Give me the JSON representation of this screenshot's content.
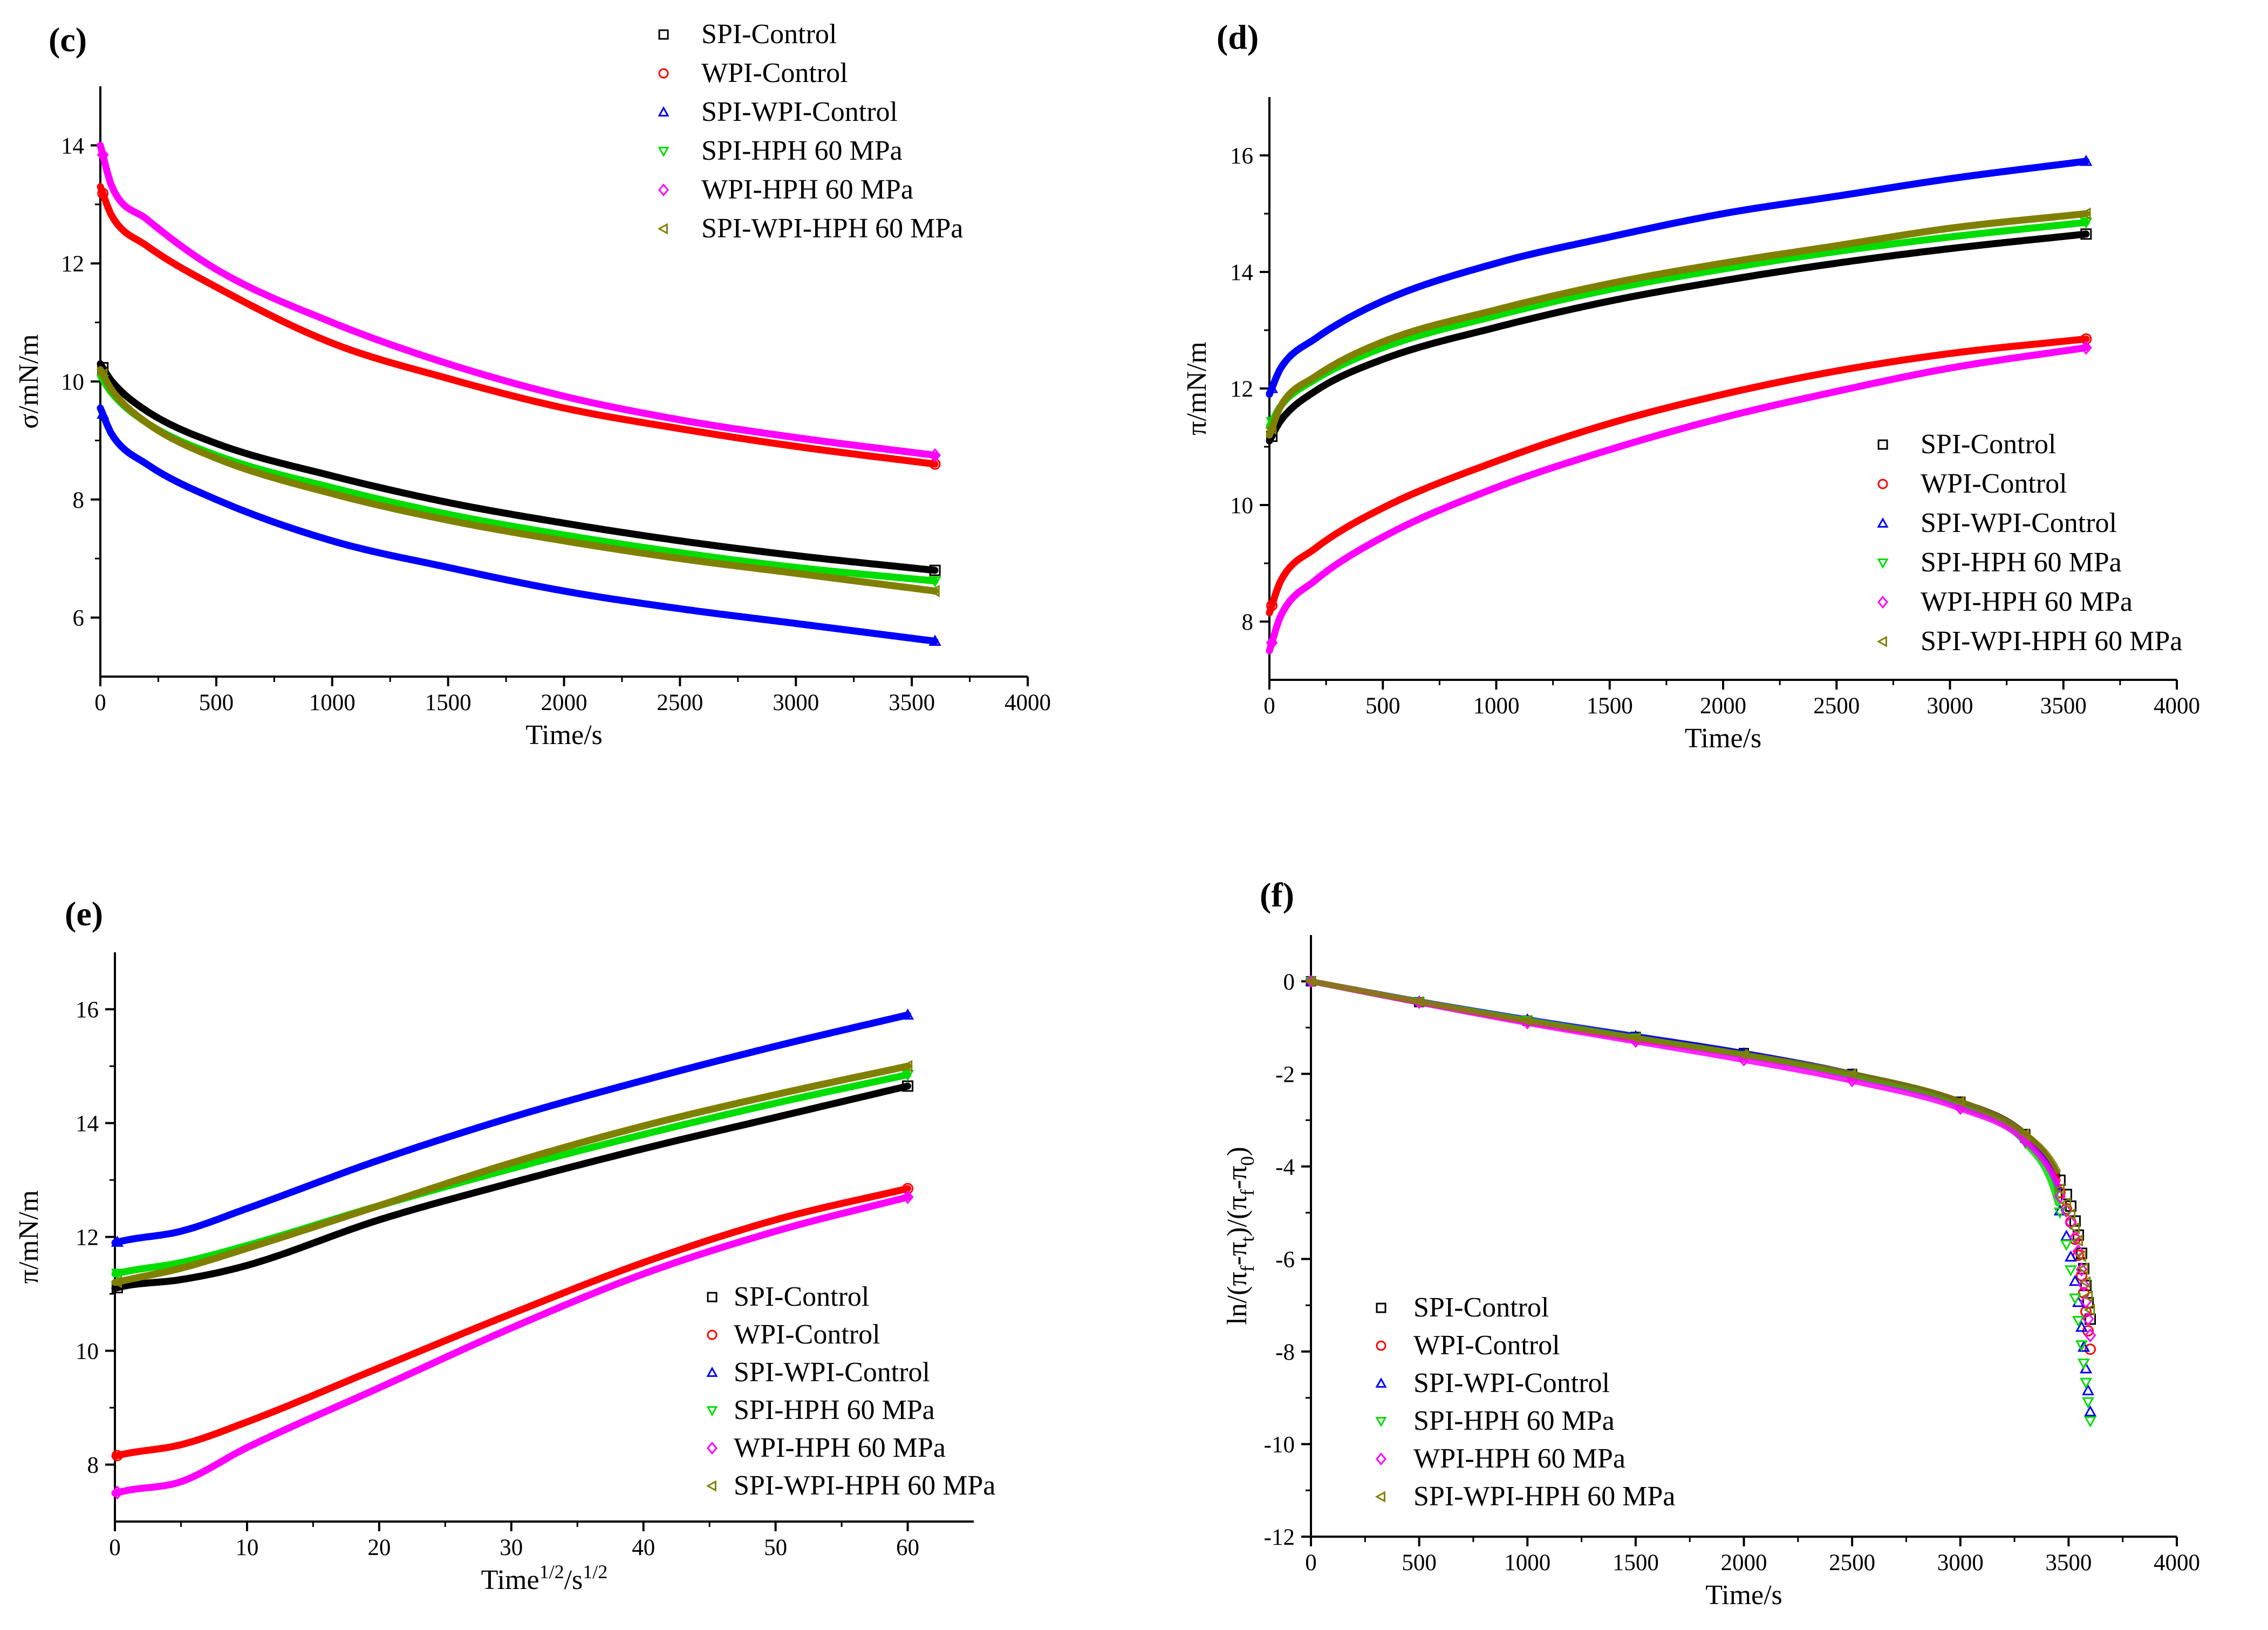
{
  "figure": {
    "legend": [
      {
        "label": "SPI-Control",
        "color": "#000000",
        "marker": "square"
      },
      {
        "label": "WPI-Control",
        "color": "#ff0000",
        "marker": "circle"
      },
      {
        "label": "SPI-WPI-Control",
        "color": "#0000ff",
        "marker": "triangle-up"
      },
      {
        "label": "SPI-HPH 60 MPa",
        "color": "#00dd00",
        "marker": "triangle-down"
      },
      {
        "label": "WPI-HPH 60 MPa",
        "color": "#ff00ff",
        "marker": "diamond"
      },
      {
        "label": "SPI-WPI-HPH 60 MPa",
        "color": "#808000",
        "marker": "triangle-left"
      }
    ]
  },
  "chart_data": [
    {
      "panel": "(c)",
      "type": "line",
      "xlabel": "Time/s",
      "ylabel": "σ/mN/m",
      "xlim": [
        0,
        4000
      ],
      "ylim": [
        5,
        15
      ],
      "xticks": [
        0,
        500,
        1000,
        1500,
        2000,
        2500,
        3000,
        3500,
        4000
      ],
      "yticks": [
        6,
        8,
        10,
        12,
        14
      ],
      "legend_position": "top-right",
      "series": [
        {
          "name": "SPI-Control",
          "x": [
            0,
            50,
            200,
            500,
            1000,
            1500,
            2000,
            2500,
            3000,
            3600
          ],
          "y": [
            10.3,
            10.0,
            9.5,
            8.95,
            8.4,
            7.95,
            7.6,
            7.3,
            7.05,
            6.8
          ]
        },
        {
          "name": "WPI-Control",
          "x": [
            0,
            50,
            200,
            500,
            1000,
            1500,
            2000,
            2500,
            3000,
            3600
          ],
          "y": [
            13.3,
            12.8,
            12.3,
            11.6,
            10.65,
            10.05,
            9.55,
            9.2,
            8.9,
            8.6
          ]
        },
        {
          "name": "SPI-WPI-Control",
          "x": [
            0,
            50,
            200,
            500,
            1000,
            1500,
            2000,
            2500,
            3000,
            3600
          ],
          "y": [
            9.55,
            9.1,
            8.6,
            8.0,
            7.3,
            6.85,
            6.45,
            6.15,
            5.9,
            5.6
          ]
        },
        {
          "name": "SPI-HPH 60 MPa",
          "x": [
            0,
            50,
            200,
            500,
            1000,
            1500,
            2000,
            2500,
            3000,
            3600
          ],
          "y": [
            10.1,
            9.8,
            9.3,
            8.75,
            8.2,
            7.75,
            7.4,
            7.1,
            6.85,
            6.62
          ]
        },
        {
          "name": "WPI-HPH 60 MPa",
          "x": [
            0,
            50,
            200,
            500,
            1000,
            1500,
            2000,
            2500,
            3000,
            3600
          ],
          "y": [
            14.0,
            13.3,
            12.75,
            11.9,
            11.0,
            10.3,
            9.75,
            9.35,
            9.05,
            8.75
          ]
        },
        {
          "name": "SPI-WPI-HPH 60 MPa",
          "x": [
            0,
            50,
            200,
            500,
            1000,
            1500,
            2000,
            2500,
            3000,
            3600
          ],
          "y": [
            10.2,
            9.85,
            9.3,
            8.7,
            8.1,
            7.65,
            7.3,
            7.0,
            6.75,
            6.45
          ]
        }
      ]
    },
    {
      "panel": "(d)",
      "type": "line",
      "xlabel": "Time/s",
      "ylabel": "π/mN/m",
      "xlim": [
        0,
        4000
      ],
      "ylim": [
        7,
        17
      ],
      "xticks": [
        0,
        500,
        1000,
        1500,
        2000,
        2500,
        3000,
        3500,
        4000
      ],
      "yticks": [
        8,
        10,
        12,
        14,
        16
      ],
      "legend_position": "bottom-right",
      "series": [
        {
          "name": "SPI-Control",
          "x": [
            0,
            50,
            200,
            500,
            1000,
            1500,
            2000,
            2500,
            3000,
            3600
          ],
          "y": [
            11.1,
            11.45,
            11.95,
            12.5,
            13.05,
            13.5,
            13.85,
            14.15,
            14.4,
            14.65
          ]
        },
        {
          "name": "WPI-Control",
          "x": [
            0,
            50,
            200,
            500,
            1000,
            1500,
            2000,
            2500,
            3000,
            3600
          ],
          "y": [
            8.15,
            8.7,
            9.25,
            9.95,
            10.75,
            11.4,
            11.9,
            12.3,
            12.6,
            12.85
          ]
        },
        {
          "name": "SPI-WPI-Control",
          "x": [
            0,
            50,
            200,
            500,
            1000,
            1500,
            2000,
            2500,
            3000,
            3600
          ],
          "y": [
            11.9,
            12.35,
            12.85,
            13.5,
            14.15,
            14.6,
            15.0,
            15.3,
            15.6,
            15.9
          ]
        },
        {
          "name": "SPI-HPH 60 MPa",
          "x": [
            0,
            50,
            200,
            500,
            1000,
            1500,
            2000,
            2500,
            3000,
            3600
          ],
          "y": [
            11.35,
            11.7,
            12.15,
            12.7,
            13.25,
            13.7,
            14.05,
            14.35,
            14.6,
            14.85
          ]
        },
        {
          "name": "WPI-HPH 60 MPa",
          "x": [
            0,
            50,
            200,
            500,
            1000,
            1500,
            2000,
            2500,
            3000,
            3600
          ],
          "y": [
            7.5,
            8.1,
            8.7,
            9.45,
            10.3,
            10.95,
            11.5,
            11.95,
            12.35,
            12.7
          ]
        },
        {
          "name": "SPI-WPI-HPH 60 MPa",
          "x": [
            0,
            50,
            200,
            500,
            1000,
            1500,
            2000,
            2500,
            3000,
            3600
          ],
          "y": [
            11.2,
            11.7,
            12.2,
            12.8,
            13.35,
            13.8,
            14.15,
            14.45,
            14.75,
            15.0
          ]
        }
      ]
    },
    {
      "panel": "(e)",
      "type": "line",
      "xlabel": "Time",
      "xlabel_sup": "1/2",
      "xlabel_mid": "/s",
      "xlabel_sup2": "1/2",
      "ylabel": "π/mN/m",
      "xlim": [
        0,
        65
      ],
      "ylim": [
        7,
        17
      ],
      "xticks": [
        0,
        10,
        20,
        30,
        40,
        50,
        60
      ],
      "yticks": [
        8,
        10,
        12,
        14,
        16
      ],
      "legend_position": "bottom-right",
      "series": [
        {
          "name": "SPI-Control",
          "x": [
            0,
            1,
            5,
            10,
            20,
            30,
            40,
            50,
            60
          ],
          "y": [
            11.1,
            11.15,
            11.25,
            11.5,
            12.3,
            12.95,
            13.55,
            14.1,
            14.65
          ]
        },
        {
          "name": "WPI-Control",
          "x": [
            0,
            1,
            5,
            10,
            20,
            30,
            40,
            50,
            60
          ],
          "y": [
            8.15,
            8.2,
            8.35,
            8.75,
            9.7,
            10.65,
            11.55,
            12.3,
            12.85
          ]
        },
        {
          "name": "SPI-WPI-Control",
          "x": [
            0,
            1,
            5,
            10,
            20,
            30,
            40,
            50,
            60
          ],
          "y": [
            11.9,
            11.95,
            12.1,
            12.5,
            13.35,
            14.1,
            14.75,
            15.35,
            15.9
          ]
        },
        {
          "name": "SPI-HPH 60 MPa",
          "x": [
            0,
            1,
            5,
            10,
            20,
            30,
            40,
            50,
            60
          ],
          "y": [
            11.35,
            11.4,
            11.55,
            11.85,
            12.55,
            13.2,
            13.8,
            14.35,
            14.85
          ]
        },
        {
          "name": "WPI-HPH 60 MPa",
          "x": [
            0,
            1,
            5,
            10,
            20,
            30,
            40,
            50,
            60
          ],
          "y": [
            7.5,
            7.55,
            7.7,
            8.3,
            9.35,
            10.4,
            11.35,
            12.1,
            12.7
          ]
        },
        {
          "name": "SPI-WPI-HPH 60 MPa",
          "x": [
            0,
            1,
            5,
            10,
            20,
            30,
            40,
            50,
            60
          ],
          "y": [
            11.2,
            11.25,
            11.45,
            11.8,
            12.55,
            13.3,
            13.95,
            14.5,
            15.0
          ]
        }
      ]
    },
    {
      "panel": "(f)",
      "type": "scatter",
      "xlabel": "Time/s",
      "ylabel": "ln/(π",
      "ylabel_full": "ln/(πf-πt)/(πf-π0)",
      "ylabel_parts": {
        "a": "ln/(π",
        "s1": "f",
        "b": "-π",
        "s2": "t",
        "c": ")/(π",
        "s3": "f",
        "d": "-π",
        "s4": "0",
        "e": ")"
      },
      "xlim": [
        0,
        4000
      ],
      "ylim": [
        -12,
        1
      ],
      "xticks": [
        0,
        500,
        1000,
        1500,
        2000,
        2500,
        3000,
        3500,
        4000
      ],
      "yticks": [
        0,
        -2,
        -4,
        -6,
        -8,
        -10,
        -12
      ],
      "legend_position": "bottom-left",
      "series": [
        {
          "name": "SPI-Control",
          "x": [
            0,
            500,
            1000,
            1500,
            2000,
            2500,
            3000,
            3300,
            3450,
            3550,
            3600
          ],
          "y": [
            0,
            -0.45,
            -0.85,
            -1.2,
            -1.55,
            -2.0,
            -2.6,
            -3.3,
            -4.2,
            -5.6,
            -7.3
          ]
        },
        {
          "name": "WPI-Control",
          "x": [
            0,
            500,
            1000,
            1500,
            2000,
            2500,
            3000,
            3300,
            3450,
            3550,
            3600
          ],
          "y": [
            0,
            -0.45,
            -0.87,
            -1.25,
            -1.6,
            -2.05,
            -2.65,
            -3.35,
            -4.3,
            -5.9,
            -7.8
          ]
        },
        {
          "name": "SPI-WPI-Control",
          "x": [
            0,
            500,
            1000,
            1500,
            2000,
            2500,
            3000,
            3300,
            3450,
            3550,
            3600
          ],
          "y": [
            0,
            -0.43,
            -0.82,
            -1.18,
            -1.55,
            -2.0,
            -2.65,
            -3.4,
            -4.5,
            -6.8,
            -9.0
          ]
        },
        {
          "name": "SPI-HPH 60 MPa",
          "x": [
            0,
            500,
            1000,
            1500,
            2000,
            2500,
            3000,
            3300,
            3450,
            3550,
            3600
          ],
          "y": [
            0,
            -0.44,
            -0.84,
            -1.22,
            -1.6,
            -2.05,
            -2.7,
            -3.5,
            -4.8,
            -7.5,
            -9.5
          ]
        },
        {
          "name": "WPI-HPH 60 MPa",
          "x": [
            0,
            500,
            1000,
            1500,
            2000,
            2500,
            3000,
            3300,
            3450,
            3550,
            3600
          ],
          "y": [
            0,
            -0.46,
            -0.9,
            -1.3,
            -1.7,
            -2.15,
            -2.75,
            -3.45,
            -4.4,
            -5.8,
            -7.5
          ]
        },
        {
          "name": "SPI-WPI-HPH 60 MPa",
          "x": [
            0,
            500,
            1000,
            1500,
            2000,
            2500,
            3000,
            3300,
            3450,
            3550,
            3600
          ],
          "y": [
            0,
            -0.44,
            -0.85,
            -1.22,
            -1.58,
            -2.0,
            -2.6,
            -3.3,
            -4.1,
            -5.4,
            -6.8
          ]
        }
      ]
    }
  ]
}
